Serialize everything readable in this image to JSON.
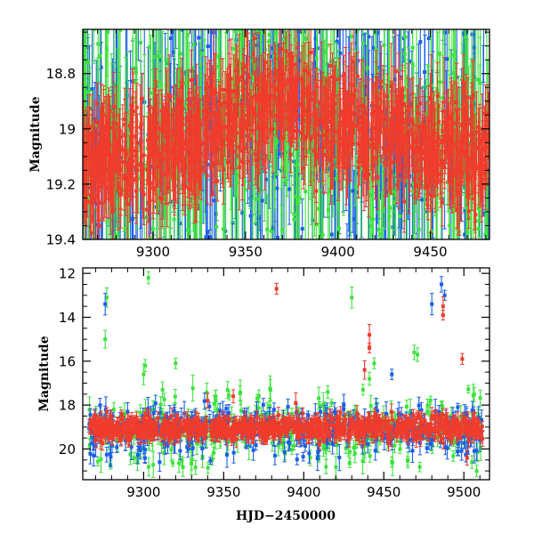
{
  "chart_data": [
    {
      "type": "scatter",
      "panel": "top",
      "title": "",
      "xlabel": "",
      "ylabel": "Magnitude",
      "xlim": [
        9262,
        9482
      ],
      "ylim": [
        19.4,
        18.64
      ],
      "y_inverted": true,
      "xticks": [
        9300,
        9350,
        9400,
        9450
      ],
      "yticks": [
        18.8,
        19,
        19.2,
        19.4
      ],
      "ytick_labels": [
        "18.8",
        "19",
        "19.2",
        "19.4"
      ],
      "series": [
        {
          "name": "blue",
          "color": "#1a5fe8",
          "baseline": [
            [
              9262,
              19.16
            ],
            [
              9300,
              19.08
            ],
            [
              9340,
              18.98
            ],
            [
              9372,
              18.9
            ],
            [
              9410,
              19.0
            ],
            [
              9450,
              19.06
            ],
            [
              9482,
              19.1
            ]
          ],
          "spread": 0.2,
          "scatter_range": [
            18.6,
            19.45
          ],
          "density": "dense"
        },
        {
          "name": "green",
          "color": "#3fe23f",
          "baseline": [
            [
              9262,
              19.16
            ],
            [
              9300,
              19.08
            ],
            [
              9340,
              18.98
            ],
            [
              9372,
              18.9
            ],
            [
              9410,
              19.0
            ],
            [
              9450,
              19.06
            ],
            [
              9482,
              19.1
            ]
          ],
          "spread": 0.2,
          "scatter_range": [
            18.6,
            19.45
          ],
          "density": "dense"
        },
        {
          "name": "red",
          "color": "#f03c2c",
          "baseline": [
            [
              9262,
              19.14
            ],
            [
              9300,
              19.08
            ],
            [
              9340,
              18.98
            ],
            [
              9372,
              18.9
            ],
            [
              9410,
              19.0
            ],
            [
              9450,
              19.06
            ],
            [
              9482,
              19.08
            ]
          ],
          "spread": 0.09,
          "density": "dense"
        }
      ]
    },
    {
      "type": "scatter",
      "panel": "bottom",
      "title": "",
      "xlabel": "HJD−2450000",
      "ylabel": "Magnitude",
      "xlim": [
        9262,
        9516
      ],
      "ylim": [
        21.4,
        11.75
      ],
      "y_inverted": true,
      "xticks": [
        9300,
        9350,
        9400,
        9450,
        9500
      ],
      "yticks": [
        12,
        14,
        16,
        18,
        20
      ],
      "ytick_labels": [
        "12",
        "14",
        "16",
        "18",
        "20"
      ],
      "series": [
        {
          "name": "blue",
          "color": "#1a5fe8",
          "baseline_mag": 19.05,
          "outliers": [
            [
              9276,
              13.4
            ],
            [
              9486,
              12.5
            ],
            [
              9488,
              13.0
            ],
            [
              9480,
              13.4
            ],
            [
              9455,
              16.6
            ],
            [
              9290,
              18.3
            ],
            [
              9500,
              18.6
            ],
            [
              9425,
              18.0
            ],
            [
              9310,
              20.6
            ],
            [
              9382,
              20.3
            ]
          ]
        },
        {
          "name": "green",
          "color": "#3fe23f",
          "baseline_mag": 19.1,
          "outliers": [
            [
              9303,
              12.2
            ],
            [
              9277,
              13.1
            ],
            [
              9276,
              15.0
            ],
            [
              9430,
              13.1
            ],
            [
              9320,
              16.1
            ],
            [
              9300,
              16.6
            ],
            [
              9301,
              16.2
            ],
            [
              9469,
              15.6
            ],
            [
              9471,
              15.7
            ],
            [
              9444,
              16.1
            ],
            [
              9441,
              16.8
            ],
            [
              9437,
              17.3
            ],
            [
              9345,
              17.6
            ],
            [
              9372,
              17.6
            ],
            [
              9415,
              17.4
            ],
            [
              9505,
              20.6
            ],
            [
              9508,
              21.0
            ],
            [
              9330,
              20.5
            ],
            [
              9404,
              20.4
            ],
            [
              9465,
              20.5
            ]
          ]
        },
        {
          "name": "red",
          "color": "#f03c2c",
          "baseline_mag": 19.05,
          "outliers": [
            [
              9383,
              12.7
            ],
            [
              9487,
              13.9
            ],
            [
              9487,
              13.5
            ],
            [
              9441,
              14.8
            ],
            [
              9441,
              15.4
            ],
            [
              9499,
              15.9
            ],
            [
              9438,
              16.4
            ],
            [
              9340,
              17.8
            ],
            [
              9356,
              17.6
            ],
            [
              9395,
              17.9
            ],
            [
              9480,
              18.6
            ],
            [
              9502,
              20.4
            ]
          ]
        }
      ]
    }
  ],
  "colors": {
    "blue": "#1a5fe8",
    "green": "#3fe23f",
    "red": "#f03c2c"
  }
}
